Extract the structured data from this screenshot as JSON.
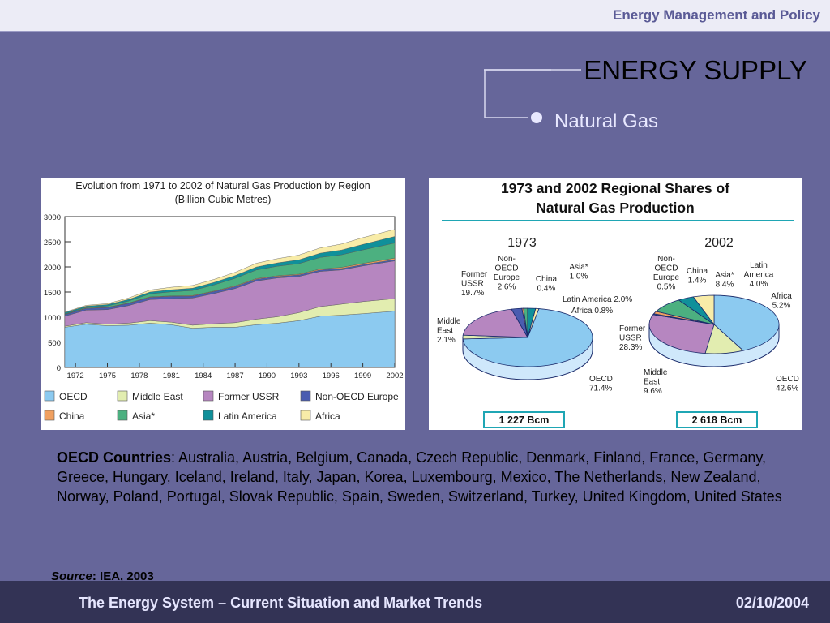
{
  "header": {
    "course": "Energy Management and Policy"
  },
  "slide": {
    "title": "ENERGY SUPPLY",
    "subtitle": "Natural Gas"
  },
  "colors": {
    "background": "#66669a",
    "OECD": "#8ccaf0",
    "Middle East": "#e2edb0",
    "Former USSR": "#b686c0",
    "Non-OECD Europe": "#4a5cb0",
    "China": "#f0a060",
    "Asia": "#4cb080",
    "Latin America": "#10909a",
    "Africa": "#f8eca8"
  },
  "chart_data": [
    {
      "type": "area",
      "stacked": true,
      "title": "Evolution from 1971 to 2002 of Natural Gas Production by Region",
      "subtitle": "(Billion Cubic Metres)",
      "x_ticks": [
        "1972",
        "1975",
        "1978",
        "1981",
        "1984",
        "1987",
        "1990",
        "1993",
        "1996",
        "1999",
        "2002"
      ],
      "y_ticks": [
        "0",
        "500",
        "1000",
        "1500",
        "2000",
        "2500",
        "3000"
      ],
      "ylim": [
        0,
        3000
      ],
      "x": [
        1971,
        1973,
        1975,
        1977,
        1979,
        1981,
        1983,
        1985,
        1987,
        1989,
        1991,
        1993,
        1995,
        1997,
        1999,
        2002
      ],
      "series": [
        {
          "name": "OECD",
          "values": [
            800,
            860,
            830,
            840,
            880,
            850,
            780,
            800,
            800,
            850,
            880,
            930,
            1020,
            1040,
            1070,
            1120
          ]
        },
        {
          "name": "Middle East",
          "values": [
            20,
            30,
            30,
            40,
            50,
            50,
            60,
            70,
            90,
            110,
            130,
            160,
            190,
            220,
            240,
            250
          ]
        },
        {
          "name": "Former USSR",
          "values": [
            200,
            250,
            290,
            350,
            420,
            470,
            540,
            600,
            680,
            760,
            770,
            720,
            700,
            680,
            710,
            750
          ]
        },
        {
          "name": "Non-OECD Europe",
          "values": [
            30,
            35,
            40,
            45,
            45,
            45,
            40,
            40,
            40,
            35,
            30,
            30,
            30,
            30,
            25,
            25
          ]
        },
        {
          "name": "China",
          "values": [
            5,
            5,
            7,
            8,
            10,
            10,
            10,
            10,
            12,
            13,
            15,
            15,
            18,
            20,
            22,
            30
          ]
        },
        {
          "name": "Asia*",
          "values": [
            10,
            15,
            25,
            40,
            60,
            80,
            100,
            120,
            150,
            170,
            190,
            210,
            230,
            250,
            270,
            300
          ]
        },
        {
          "name": "Latin America",
          "values": [
            25,
            25,
            28,
            30,
            35,
            40,
            45,
            50,
            55,
            60,
            65,
            75,
            85,
            95,
            110,
            130
          ]
        },
        {
          "name": "Africa",
          "values": [
            10,
            15,
            20,
            30,
            40,
            50,
            55,
            60,
            65,
            75,
            85,
            95,
            105,
            120,
            135,
            140
          ]
        }
      ],
      "legend": [
        "OECD",
        "Middle East",
        "Former USSR",
        "Non-OECD Europe",
        "China",
        "Asia*",
        "Latin America",
        "Africa"
      ],
      "legend_position": "bottom"
    },
    {
      "type": "pie",
      "title_line1": "1973 and 2002 Regional Shares of",
      "title_line2": "Natural Gas Production",
      "pies": [
        {
          "year": "1973",
          "total": "1 227 Bcm",
          "slices": [
            {
              "region": "OECD",
              "value": 71.4,
              "label": [
                "OECD",
                "71.4%"
              ]
            },
            {
              "region": "Middle East",
              "value": 2.1,
              "label": [
                "Middle",
                "East",
                "2.1%"
              ]
            },
            {
              "region": "Former USSR",
              "value": 19.7,
              "label": [
                "Former",
                "USSR",
                "19.7%"
              ]
            },
            {
              "region": "Non-OECD Europe",
              "value": 2.6,
              "label": [
                "Non-",
                "OECD",
                "Europe",
                "2.6%"
              ]
            },
            {
              "region": "China",
              "value": 0.4,
              "label": [
                "China",
                "0.4%"
              ]
            },
            {
              "region": "Asia",
              "value": 1.0,
              "label": [
                "Asia*",
                "1.0%"
              ]
            },
            {
              "region": "Latin America",
              "value": 2.0,
              "label": [
                "Latin America 2.0%"
              ]
            },
            {
              "region": "Africa",
              "value": 0.8,
              "label": [
                "Africa 0.8%"
              ]
            }
          ]
        },
        {
          "year": "2002",
          "total": "2 618 Bcm",
          "slices": [
            {
              "region": "OECD",
              "value": 42.6,
              "label": [
                "OECD",
                "42.6%"
              ]
            },
            {
              "region": "Middle East",
              "value": 9.6,
              "label": [
                "Middle",
                "East",
                "9.6%"
              ]
            },
            {
              "region": "Former USSR",
              "value": 28.3,
              "label": [
                "Former",
                "USSR",
                "28.3%"
              ]
            },
            {
              "region": "Non-OECD Europe",
              "value": 0.5,
              "label": [
                "Non-",
                "OECD",
                "Europe",
                "0.5%"
              ]
            },
            {
              "region": "China",
              "value": 1.4,
              "label": [
                "China",
                "1.4%"
              ]
            },
            {
              "region": "Asia",
              "value": 8.4,
              "label": [
                "Asia*",
                "8.4%"
              ]
            },
            {
              "region": "Latin America",
              "value": 4.0,
              "label": [
                "Latin",
                "America",
                "4.0%"
              ]
            },
            {
              "region": "Africa",
              "value": 5.2,
              "label": [
                "Africa",
                "5.2%"
              ]
            }
          ]
        }
      ]
    }
  ],
  "oecd_note": {
    "heading": "OECD Countries",
    "text": ": Australia, Austria, Belgium, Canada, Czech Republic, Denmark, Finland, France, Germany, Greece, Hungary, Iceland, Ireland, Italy, Japan, Korea, Luxembourg, Mexico, The Netherlands, New Zealand, Norway, Poland, Portugal, Slovak Republic, Spain, Sweden, Switzerland, Turkey, United Kingdom, United States"
  },
  "source": {
    "label": "Source",
    "text": ": IEA, 2003"
  },
  "footer": {
    "left": "The Energy System – Current Situation and Market Trends",
    "right": "02/10/2004"
  }
}
